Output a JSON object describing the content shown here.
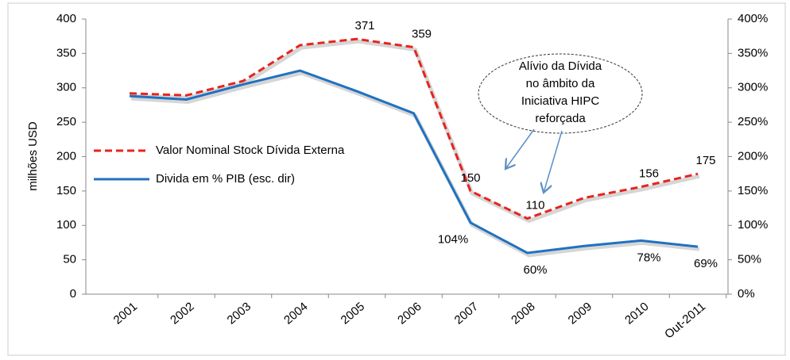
{
  "chart_data": {
    "type": "line",
    "y_label": "milhões USD",
    "categories": [
      "2001",
      "2002",
      "2003",
      "2004",
      "2005",
      "2006",
      "2007",
      "2008",
      "2009",
      "2010",
      "Out-2011"
    ],
    "series": [
      {
        "name": "Valor Nominal  Stock Dívida Externa",
        "color": "#e8231d",
        "dashed": true,
        "values": [
          292,
          289,
          310,
          362,
          371,
          359,
          150,
          110,
          140,
          156,
          175
        ],
        "value_labels": [
          null,
          null,
          null,
          null,
          "371",
          "359",
          "150",
          "110",
          null,
          "156",
          "175"
        ]
      },
      {
        "name": "Divida em % PIB (esc. dir)",
        "color": "#1f72c0",
        "axis": "y2",
        "values": [
          288,
          283,
          305,
          325,
          295,
          263,
          104,
          60,
          70,
          78,
          69
        ],
        "value_labels": [
          null,
          null,
          null,
          null,
          null,
          null,
          "104%",
          "60%",
          null,
          "78%",
          "69%"
        ]
      }
    ],
    "ylim": [
      0,
      400
    ],
    "yticks": [
      0,
      50,
      100,
      150,
      200,
      250,
      300,
      350,
      400
    ],
    "y2lim": [
      0,
      400
    ],
    "y2ticks": [
      {
        "value": 0,
        "label": "0%"
      },
      {
        "value": 50,
        "label": "50%"
      },
      {
        "value": 100,
        "label": "100%"
      },
      {
        "value": 150,
        "label": "150%"
      },
      {
        "value": 200,
        "label": "200%"
      },
      {
        "value": 250,
        "label": "250%"
      },
      {
        "value": 300,
        "label": "300%"
      },
      {
        "value": 350,
        "label": "350%"
      },
      {
        "value": 400,
        "label": "400%"
      }
    ],
    "annotation": [
      "Alívio da Dívida",
      "no âmbito da",
      "Iniciativa HIPC",
      "reforçada"
    ],
    "legend": "left"
  }
}
